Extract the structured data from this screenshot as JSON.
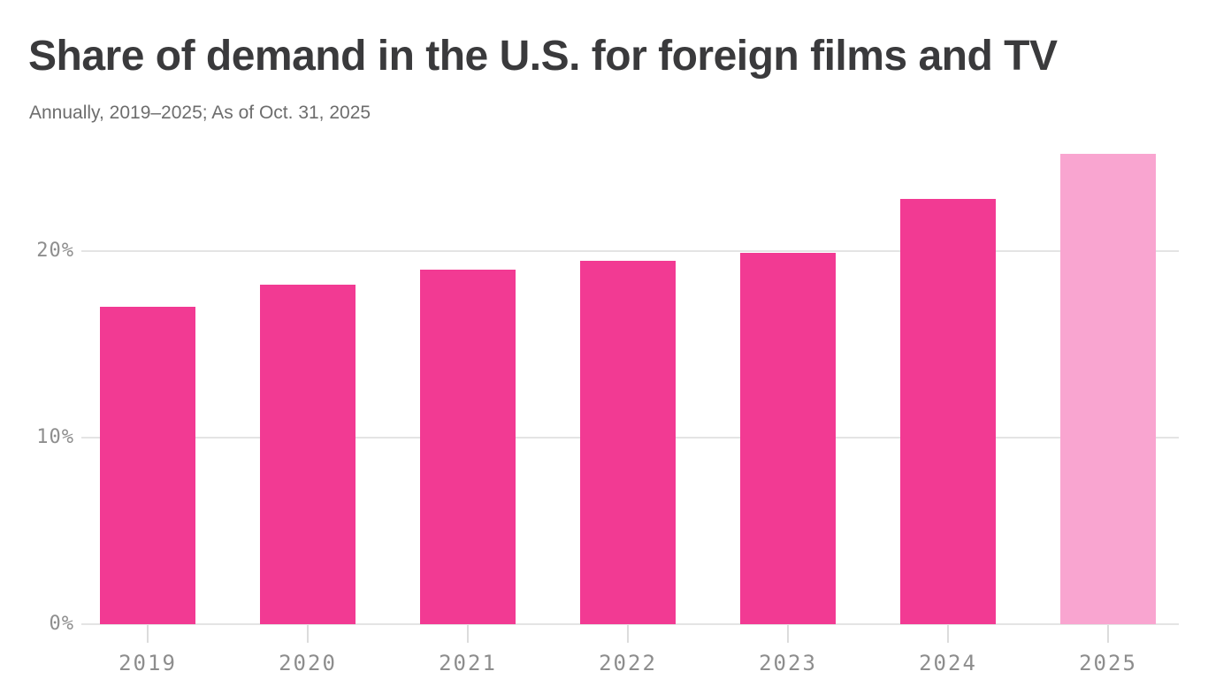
{
  "header": {
    "title": "Share of demand in the U.S. for foreign films and TV",
    "subtitle": "Annually, 2019–2025; As of Oct. 31, 2025"
  },
  "chart_data": {
    "type": "bar",
    "title": "Share of demand in the U.S. for foreign films and TV",
    "subtitle": "Annually, 2019–2025; As of Oct. 31, 2025",
    "categories": [
      "2019",
      "2020",
      "2021",
      "2022",
      "2023",
      "2024",
      "2025"
    ],
    "values": [
      17.0,
      18.2,
      19.0,
      19.5,
      19.9,
      22.8,
      25.2
    ],
    "unit": "%",
    "xlabel": "",
    "ylabel": "",
    "ylim": [
      0,
      26.5
    ],
    "y_ticks": [
      0,
      10,
      20
    ],
    "y_tick_labels": [
      "0%",
      "10%",
      "20%"
    ],
    "grid": true,
    "legend": false,
    "bar_color": "#f23a93",
    "highlight": {
      "index": 6,
      "color": "#f9a5d0"
    }
  },
  "colors": {
    "background": "#ffffff",
    "title": "#3a3a3c",
    "subtitle": "#6d6d6d",
    "axis_label": "#8e8e8e",
    "gridline": "#e4e4e4",
    "tick": "#dcdcdc",
    "bar": "#f23a93",
    "bar_highlight": "#f9a5d0"
  }
}
